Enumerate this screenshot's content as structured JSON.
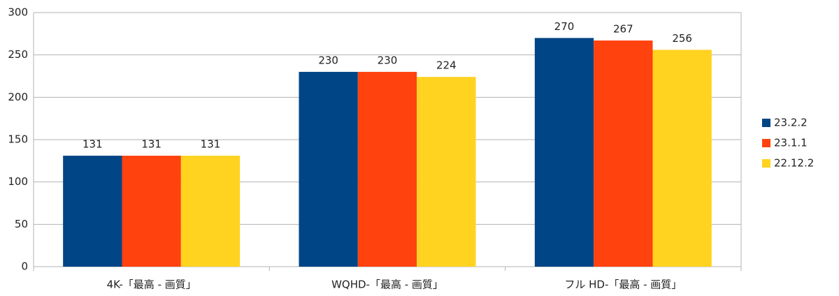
{
  "chart_data": {
    "type": "bar",
    "categories": [
      "4K-「最高 - 画質」",
      "WQHD-「最高 - 画質」",
      "フル HD-「最高 - 画質」"
    ],
    "series": [
      {
        "name": "23.2.2",
        "color": "#004586",
        "values": [
          131,
          230,
          270
        ]
      },
      {
        "name": "23.1.1",
        "color": "#ff420e",
        "values": [
          131,
          230,
          267
        ]
      },
      {
        "name": "22.12.2",
        "color": "#ffd320",
        "values": [
          131,
          224,
          256
        ]
      }
    ],
    "ylim": [
      0,
      300
    ],
    "yticks": [
      0,
      50,
      100,
      150,
      200,
      250,
      300
    ],
    "grid": true,
    "legend": "right"
  }
}
